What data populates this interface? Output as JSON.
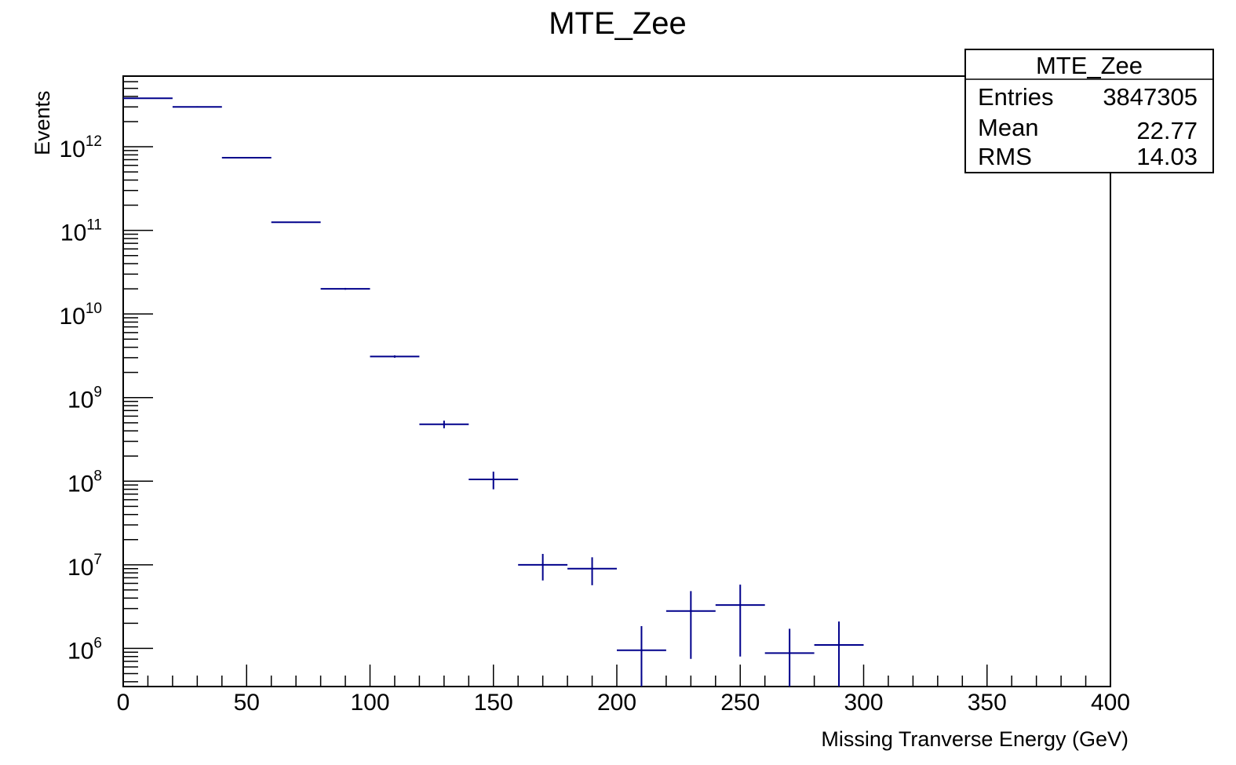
{
  "chart_data": {
    "type": "histogram",
    "title": "MTE_Zee",
    "xlabel": "Missing Tranverse Energy (GeV)",
    "ylabel": "Events",
    "xlim": [
      0,
      400
    ],
    "ylim": [
      350000,
      7000000000000
    ],
    "y_scale": "log",
    "grid": false,
    "x_ticks": [
      "0",
      "50",
      "100",
      "150",
      "200",
      "250",
      "300",
      "350",
      "400"
    ],
    "y_tick_exponents": [
      "6",
      "7",
      "8",
      "9",
      "10",
      "11",
      "12"
    ],
    "y_tick_base": "10",
    "bin_width": 20,
    "bins": [
      {
        "x": 10,
        "y": 3800000000000.0,
        "err": 50000000000.0
      },
      {
        "x": 30,
        "y": 3000000000000.0,
        "err": 50000000000.0
      },
      {
        "x": 50,
        "y": 740000000000.0,
        "err": 10000000000.0
      },
      {
        "x": 70,
        "y": 125000000000.0,
        "err": 2000000000.0
      },
      {
        "x": 90,
        "y": 20000000000.0,
        "err": 500000000.0
      },
      {
        "x": 110,
        "y": 3100000000.0,
        "err": 100000000.0
      },
      {
        "x": 130,
        "y": 480000000.0,
        "err": 50000000.0
      },
      {
        "x": 150,
        "y": 105000000.0,
        "err": 25000000.0
      },
      {
        "x": 170,
        "y": 10000000.0,
        "err": 3500000.0
      },
      {
        "x": 190,
        "y": 9000000.0,
        "err": 3300000.0
      },
      {
        "x": 210,
        "y": 950000.0,
        "err": 900000.0
      },
      {
        "x": 230,
        "y": 2800000.0,
        "err": 2050000.0
      },
      {
        "x": 250,
        "y": 3300000.0,
        "err": 2500000.0
      },
      {
        "x": 270,
        "y": 880000.0,
        "err": 840000.0
      },
      {
        "x": 290,
        "y": 1100000.0,
        "err": 1000000.0
      }
    ],
    "line_color": "#00008b",
    "stats_box": {
      "title": "MTE_Zee",
      "rows": [
        {
          "label": "Entries",
          "value": "3847305"
        },
        {
          "label": "Mean",
          "value": "22.77"
        },
        {
          "label": "RMS",
          "value": "14.03"
        }
      ],
      "placement": "top-right"
    }
  }
}
